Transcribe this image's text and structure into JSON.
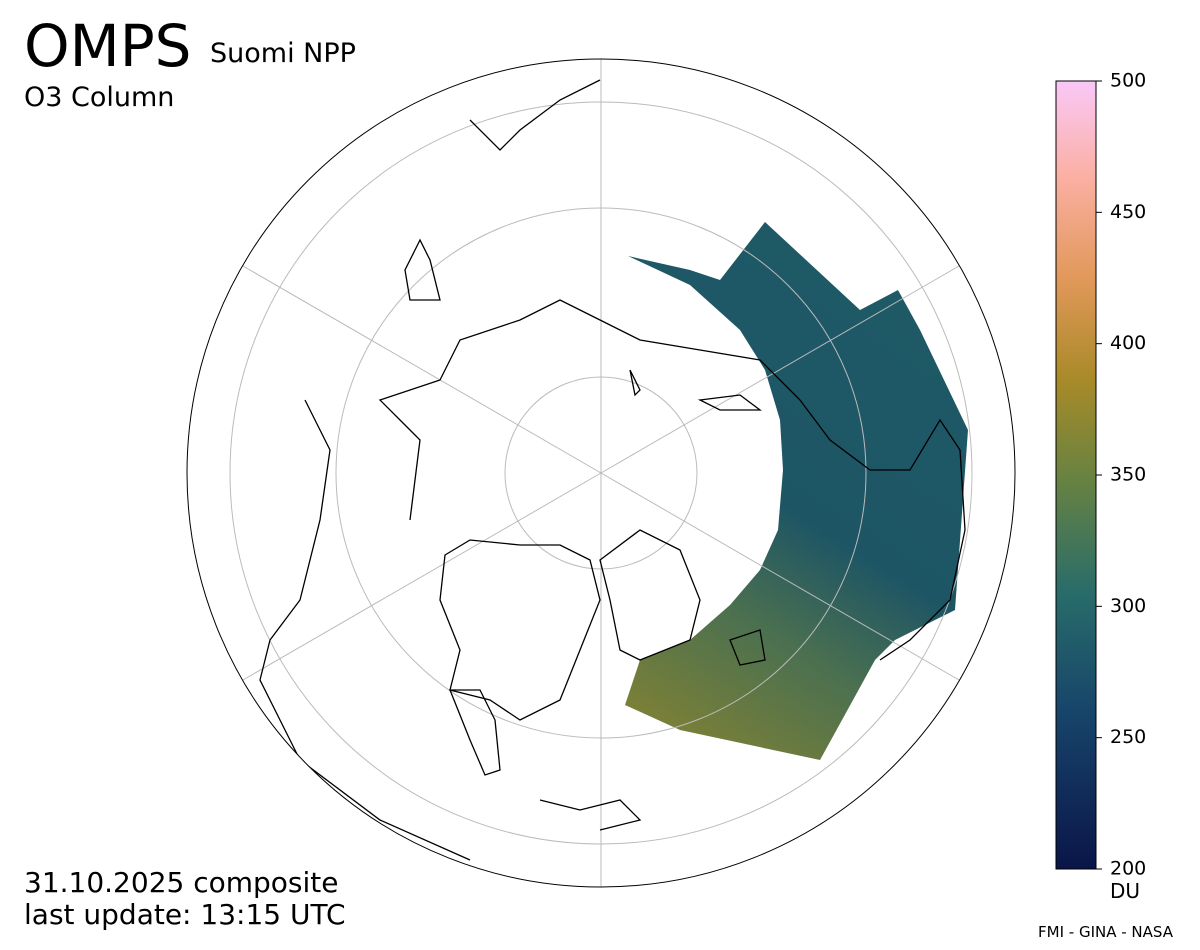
{
  "header": {
    "title": "OMPS",
    "platform": "Suomi NPP",
    "product": "O3 Column"
  },
  "colorbar": {
    "lim": [
      200,
      500
    ],
    "ticks": [
      200,
      250,
      300,
      350,
      400,
      450,
      500
    ],
    "unit": "DU"
  },
  "footer": {
    "date": "31.10.2025 composite",
    "update": "last update: 13:15 UTC",
    "credit": "FMI - GINA - NASA"
  }
}
